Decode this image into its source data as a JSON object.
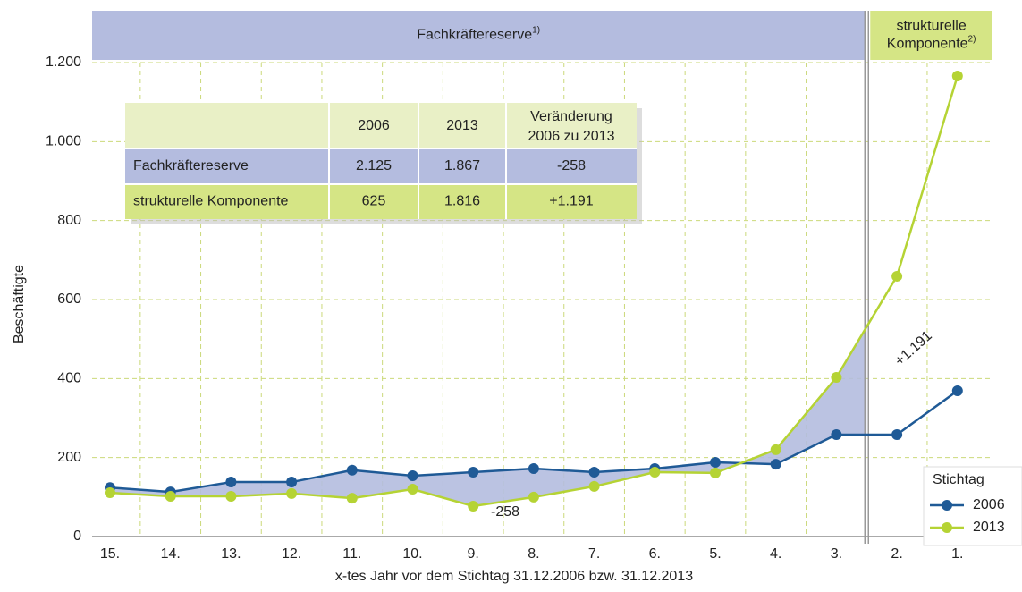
{
  "chart_data": {
    "type": "line",
    "categories": [
      "15.",
      "14.",
      "13.",
      "12.",
      "11.",
      "10.",
      "9.",
      "8.",
      "7.",
      "6.",
      "5.",
      "4.",
      "3.",
      "2.",
      "1."
    ],
    "series": [
      {
        "name": "2006",
        "color": "#1f5a96",
        "values": [
          124,
          113,
          138,
          138,
          168,
          154,
          163,
          172,
          163,
          172,
          188,
          183,
          258,
          258,
          369
        ]
      },
      {
        "name": "2013",
        "color": "#b5d334",
        "values": [
          111,
          102,
          102,
          109,
          97,
          120,
          77,
          100,
          127,
          163,
          161,
          220,
          403,
          659,
          1166
        ]
      }
    ],
    "ylim": [
      0,
      1200
    ],
    "yticks": [
      0,
      200,
      400,
      600,
      800,
      {
        "value": 1000,
        "label": "1.000"
      },
      {
        "value": 1200,
        "label": "1.200"
      }
    ],
    "ylabel": "Beschäftigte",
    "xlabel": "x-tes Jahr vor dem Stichtag 31.12.2006 bzw. 31.12.2013",
    "legend_title": "Stichtag",
    "legend": "lower right",
    "grid": true,
    "bands": [
      {
        "lines": [
          "Fachkräftereserve"
        ],
        "note": "1)",
        "color": "#b4bcdf"
      },
      {
        "lines": [
          "strukturelle",
          "Komponente"
        ],
        "note": "2)",
        "color": "#d5e585"
      }
    ],
    "annotations": [
      {
        "text": "-258"
      },
      {
        "text": "+1.191"
      }
    ]
  },
  "table": {
    "header": [
      "2006",
      "2013",
      "Veränderung",
      "2006 zu 2013"
    ],
    "rows": [
      [
        "Fachkräftereserve",
        "2.125",
        "1.867",
        "-258"
      ],
      [
        "strukturelle Komponente",
        "625",
        "1.816",
        "+1.191"
      ]
    ]
  }
}
